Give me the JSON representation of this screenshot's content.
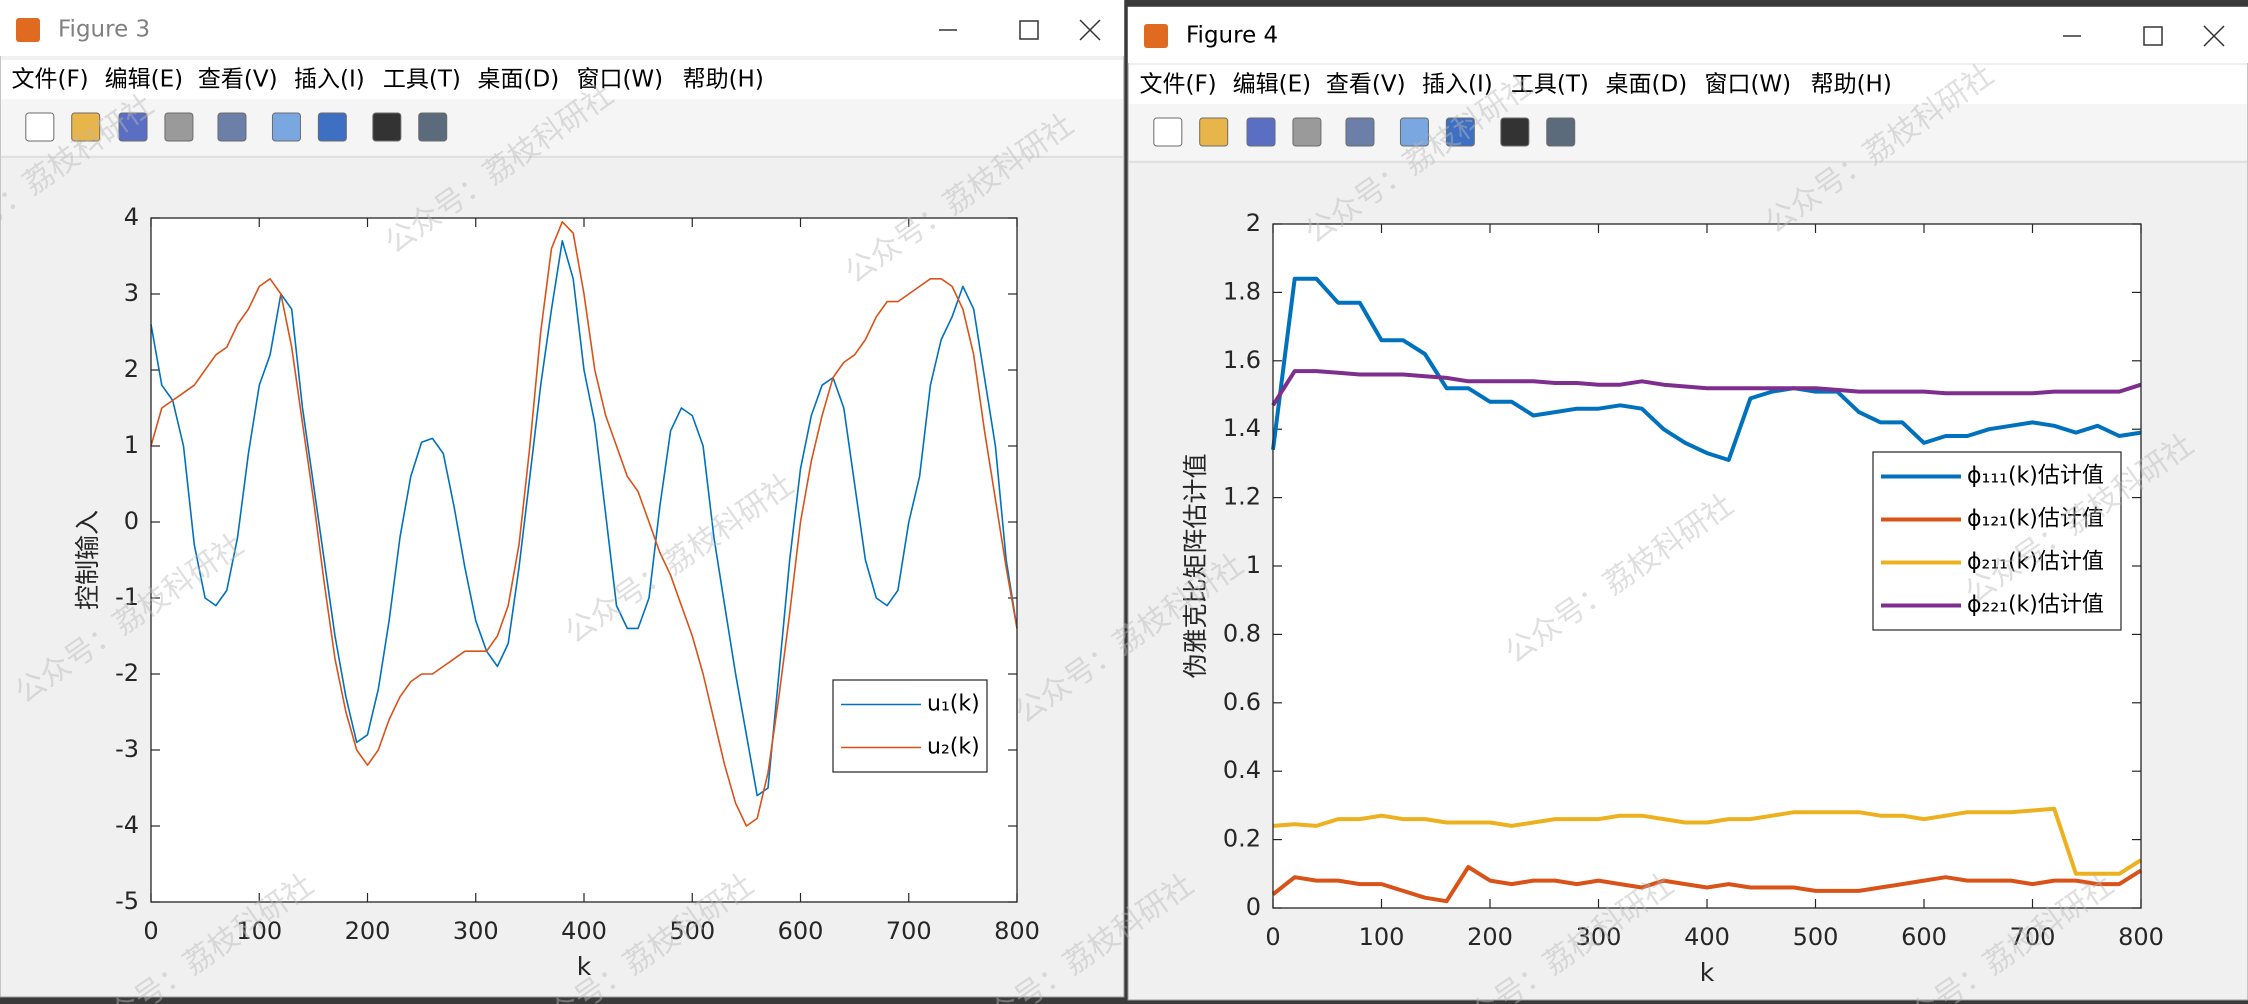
{
  "windows": [
    {
      "title": "Figure 3"
    },
    {
      "title": "Figure 4"
    }
  ],
  "menu": [
    "文件(F)",
    "编辑(E)",
    "查看(V)",
    "插入(I)",
    "工具(T)",
    "桌面(D)",
    "窗口(W)",
    "帮助(H)"
  ],
  "watermark": "公众号：荔枝科研社",
  "chart_data": [
    {
      "type": "line",
      "xlabel": "k",
      "ylabel": "控制输入",
      "legend": "southeast",
      "x": [
        0,
        10,
        20,
        30,
        40,
        50,
        60,
        70,
        80,
        90,
        100,
        110,
        120,
        130,
        140,
        150,
        160,
        170,
        180,
        190,
        200,
        210,
        220,
        230,
        240,
        250,
        260,
        270,
        280,
        290,
        300,
        310,
        320,
        330,
        340,
        350,
        360,
        370,
        380,
        390,
        400,
        410,
        420,
        430,
        440,
        450,
        460,
        470,
        480,
        490,
        500,
        510,
        520,
        530,
        540,
        550,
        560,
        570,
        580,
        590,
        600,
        610,
        620,
        630,
        640,
        650,
        660,
        670,
        680,
        690,
        700,
        710,
        720,
        730,
        740,
        750,
        760,
        770,
        780,
        790,
        800
      ],
      "series": [
        {
          "name": "u₁(k)",
          "color": "#0072bd",
          "values": [
            2.6,
            1.8,
            1.6,
            1.0,
            -0.3,
            -1.0,
            -1.1,
            -0.9,
            -0.2,
            0.9,
            1.8,
            2.2,
            3.0,
            2.8,
            1.5,
            0.5,
            -0.5,
            -1.5,
            -2.3,
            -2.9,
            -2.8,
            -2.2,
            -1.3,
            -0.2,
            0.6,
            1.05,
            1.1,
            0.9,
            0.2,
            -0.6,
            -1.3,
            -1.7,
            -1.9,
            -1.6,
            -0.6,
            0.6,
            1.8,
            2.8,
            3.7,
            3.2,
            2.0,
            1.3,
            0.1,
            -1.1,
            -1.4,
            -1.4,
            -1.0,
            0.2,
            1.2,
            1.5,
            1.4,
            1.0,
            -0.2,
            -1.1,
            -2.0,
            -2.8,
            -3.6,
            -3.5,
            -2.0,
            -0.5,
            0.7,
            1.4,
            1.8,
            1.9,
            1.5,
            0.5,
            -0.5,
            -1.0,
            -1.1,
            -0.9,
            0.0,
            0.6,
            1.8,
            2.4,
            2.7,
            3.1,
            2.8,
            1.9,
            1.0,
            -0.5,
            -1.4
          ]
        },
        {
          "name": "u₂(k)",
          "color": "#d95319",
          "values": [
            1.0,
            1.5,
            1.6,
            1.7,
            1.8,
            2.0,
            2.2,
            2.3,
            2.6,
            2.8,
            3.1,
            3.2,
            3.0,
            2.3,
            1.3,
            0.3,
            -0.8,
            -1.8,
            -2.5,
            -3.0,
            -3.2,
            -3.0,
            -2.6,
            -2.3,
            -2.1,
            -2.0,
            -2.0,
            -1.9,
            -1.8,
            -1.7,
            -1.7,
            -1.7,
            -1.5,
            -1.1,
            -0.3,
            1.0,
            2.5,
            3.6,
            3.95,
            3.8,
            3.0,
            2.0,
            1.4,
            1.0,
            0.6,
            0.4,
            0.0,
            -0.4,
            -0.7,
            -1.1,
            -1.5,
            -2.0,
            -2.6,
            -3.2,
            -3.7,
            -4.0,
            -3.9,
            -3.3,
            -2.3,
            -1.2,
            0.0,
            0.8,
            1.4,
            1.9,
            2.1,
            2.2,
            2.4,
            2.7,
            2.9,
            2.9,
            3.0,
            3.1,
            3.2,
            3.2,
            3.1,
            2.8,
            2.2,
            1.2,
            0.3,
            -0.6,
            -1.4
          ]
        }
      ],
      "xlim": [
        0,
        800
      ],
      "ylim": [
        -5,
        4
      ],
      "xticks": [
        0,
        100,
        200,
        300,
        400,
        500,
        600,
        700,
        800
      ],
      "yticks": [
        -5,
        -4,
        -3,
        -2,
        -1,
        0,
        1,
        2,
        3,
        4
      ]
    },
    {
      "type": "line",
      "xlabel": "k",
      "ylabel": "伪雅克比矩阵估计值",
      "legend": "east",
      "x": [
        0,
        20,
        40,
        60,
        80,
        100,
        120,
        140,
        160,
        180,
        200,
        220,
        240,
        260,
        280,
        300,
        320,
        340,
        360,
        380,
        400,
        420,
        440,
        460,
        480,
        500,
        520,
        540,
        560,
        580,
        600,
        620,
        640,
        660,
        680,
        700,
        720,
        740,
        760,
        780,
        800
      ],
      "series": [
        {
          "name": "ϕ₁₁₁(k)估计值",
          "color": "#0072bd",
          "values": [
            1.34,
            1.84,
            1.84,
            1.77,
            1.77,
            1.66,
            1.66,
            1.62,
            1.52,
            1.52,
            1.48,
            1.48,
            1.44,
            1.45,
            1.46,
            1.46,
            1.47,
            1.46,
            1.4,
            1.36,
            1.33,
            1.31,
            1.49,
            1.51,
            1.52,
            1.51,
            1.51,
            1.45,
            1.42,
            1.42,
            1.36,
            1.38,
            1.38,
            1.4,
            1.41,
            1.42,
            1.41,
            1.39,
            1.41,
            1.38,
            1.39
          ]
        },
        {
          "name": "ϕ₁₂₁(k)估计值",
          "color": "#d95319",
          "values": [
            0.04,
            0.09,
            0.08,
            0.08,
            0.07,
            0.07,
            0.05,
            0.03,
            0.02,
            0.12,
            0.08,
            0.07,
            0.08,
            0.08,
            0.07,
            0.08,
            0.07,
            0.06,
            0.08,
            0.07,
            0.06,
            0.07,
            0.06,
            0.06,
            0.06,
            0.05,
            0.05,
            0.05,
            0.06,
            0.07,
            0.08,
            0.09,
            0.08,
            0.08,
            0.08,
            0.07,
            0.08,
            0.08,
            0.07,
            0.07,
            0.11
          ]
        },
        {
          "name": "ϕ₂₁₁(k)估计值",
          "color": "#edb120",
          "values": [
            0.24,
            0.245,
            0.24,
            0.26,
            0.26,
            0.27,
            0.26,
            0.26,
            0.25,
            0.25,
            0.25,
            0.24,
            0.25,
            0.26,
            0.26,
            0.26,
            0.27,
            0.27,
            0.26,
            0.25,
            0.25,
            0.26,
            0.26,
            0.27,
            0.28,
            0.28,
            0.28,
            0.28,
            0.27,
            0.27,
            0.26,
            0.27,
            0.28,
            0.28,
            0.28,
            0.285,
            0.29,
            0.1,
            0.1,
            0.1,
            0.14
          ]
        },
        {
          "name": "ϕ₂₂₁(k)估计值",
          "color": "#7e2f8e",
          "values": [
            1.47,
            1.57,
            1.57,
            1.565,
            1.56,
            1.56,
            1.56,
            1.555,
            1.55,
            1.54,
            1.54,
            1.54,
            1.54,
            1.535,
            1.535,
            1.53,
            1.53,
            1.54,
            1.53,
            1.525,
            1.52,
            1.52,
            1.52,
            1.52,
            1.52,
            1.52,
            1.515,
            1.51,
            1.51,
            1.51,
            1.51,
            1.505,
            1.505,
            1.505,
            1.505,
            1.505,
            1.51,
            1.51,
            1.51,
            1.51,
            1.53
          ]
        }
      ],
      "xlim": [
        0,
        800
      ],
      "ylim": [
        0,
        2
      ],
      "xticks": [
        0,
        100,
        200,
        300,
        400,
        500,
        600,
        700,
        800
      ],
      "yticks": [
        0,
        0.2,
        0.4,
        0.6,
        0.8,
        1,
        1.2,
        1.4,
        1.6,
        1.8,
        2
      ]
    }
  ]
}
